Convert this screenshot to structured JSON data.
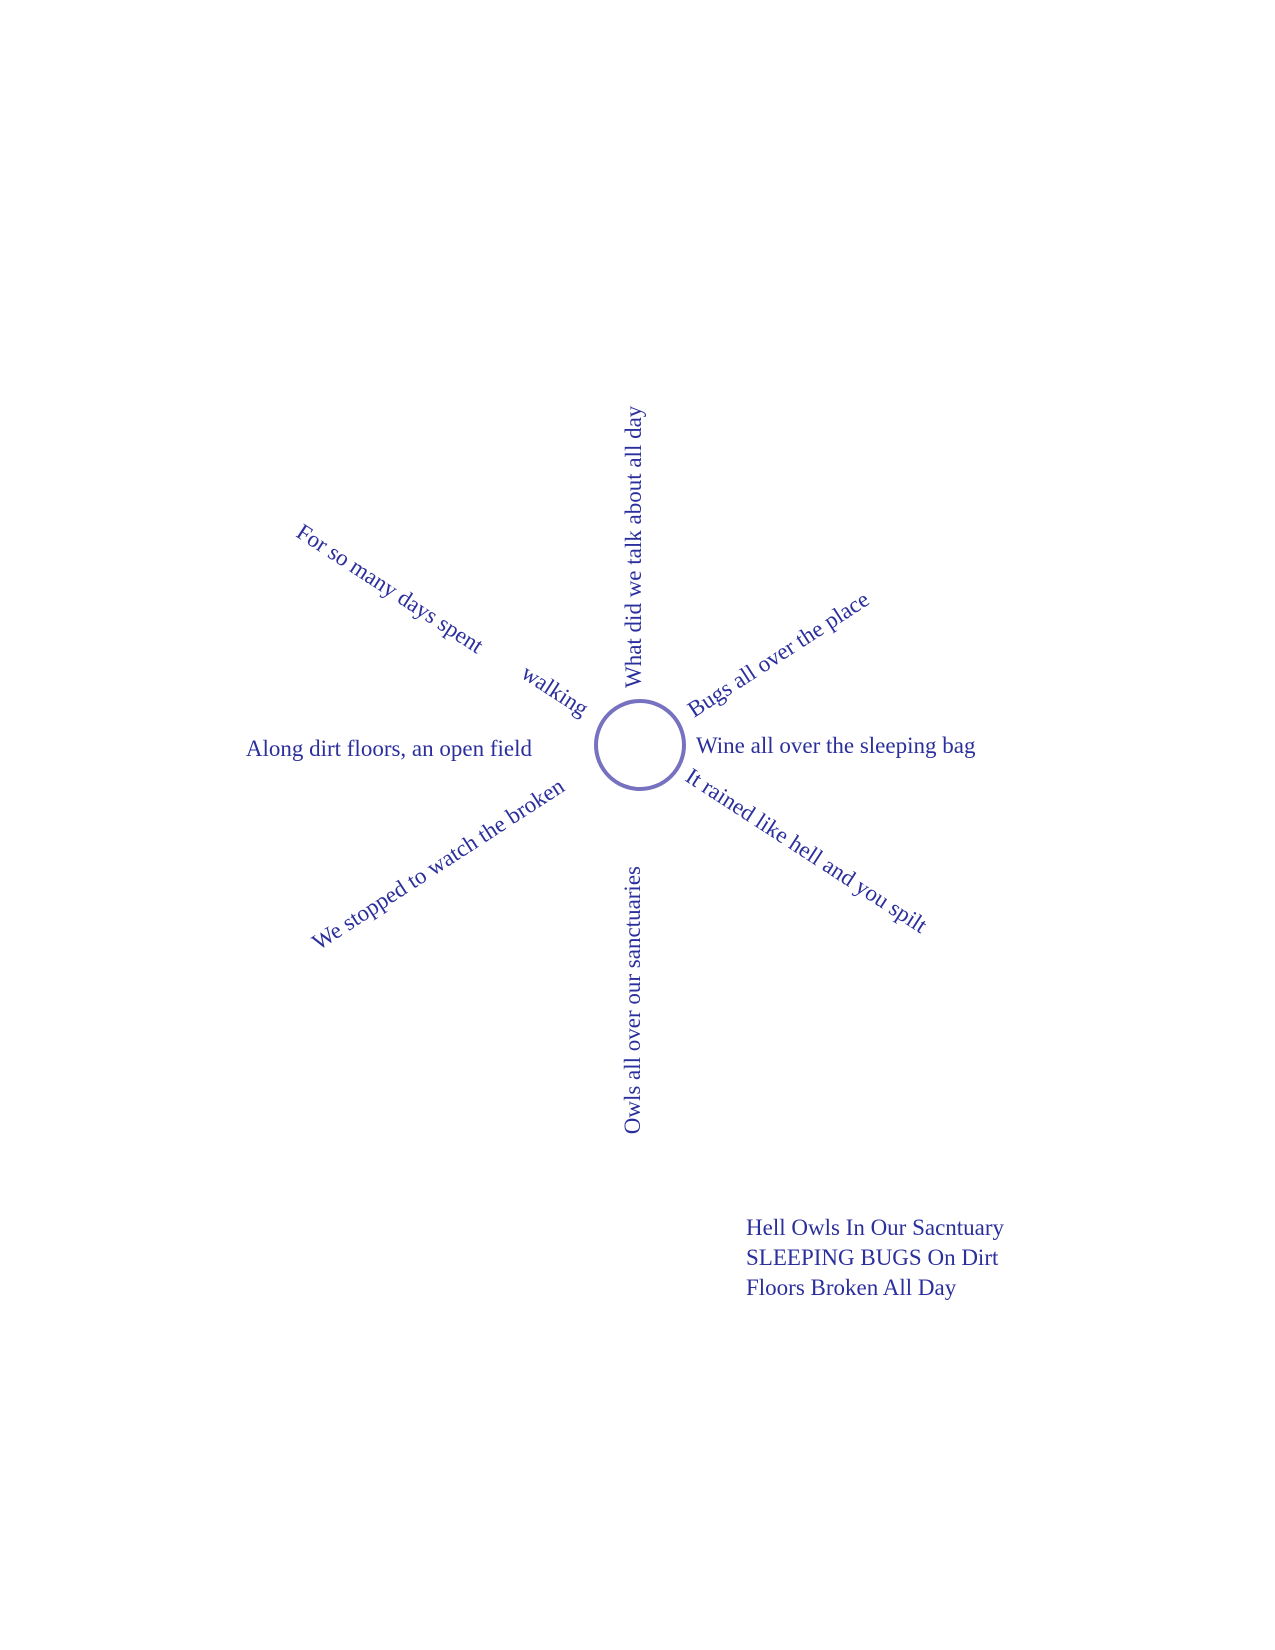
{
  "colors": {
    "ink": "#2b2f9c",
    "circle": "#7672c0"
  },
  "rays": {
    "up": "What did we talk about all day",
    "upper_right": "Bugs all over the place",
    "right": "Wine all over the sleeping bag",
    "lower_right": "It rained like hell and you spilt",
    "down": "Owls all over our sanctuaries",
    "lower_left": "We stopped to watch the broken",
    "left": "Along dirt floors, an open field",
    "upper_left_inner": "walking",
    "upper_left_outer": "For so many days spent"
  },
  "caption": {
    "line1": "Hell Owls In Our Sacntuary",
    "line2": "SLEEPING BUGS On Dirt",
    "line3": "Floors Broken All Day"
  }
}
